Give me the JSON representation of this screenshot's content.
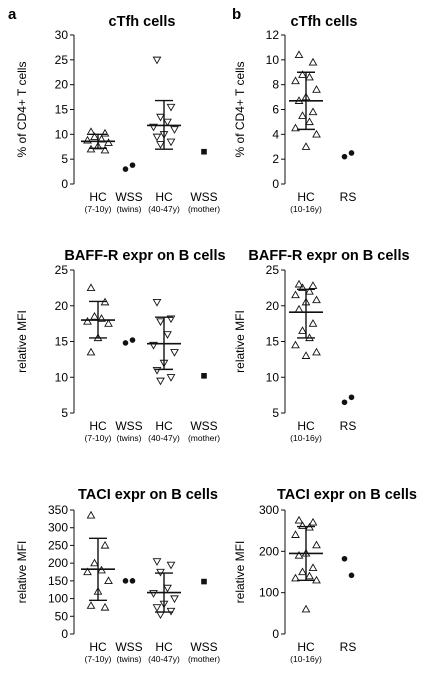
{
  "panel_letters": [
    "a",
    "b"
  ],
  "chart_data": [
    {
      "id": "a-cTfh",
      "type": "scatter",
      "panel": "a",
      "title": "cTfh cells",
      "ylabel": "% of CD4+ T cells",
      "ylim": [
        0,
        30
      ],
      "yticks": [
        0,
        5,
        10,
        15,
        20,
        25,
        30
      ],
      "categories": [
        {
          "label": "HC",
          "sub": "(7-10y)"
        },
        {
          "label": "WSS",
          "sub": "(twins)"
        },
        {
          "label": "HC",
          "sub": "(40-47y)"
        },
        {
          "label": "WSS",
          "sub": "(mother)"
        }
      ],
      "series": [
        {
          "category": 0,
          "marker": "triangle-up",
          "values": [
            10.5,
            10.2,
            9.5,
            9.0,
            8.8,
            8.3,
            7.6,
            7.0,
            6.8
          ],
          "mean": 8.6,
          "sd": [
            7.2,
            10.0
          ]
        },
        {
          "category": 1,
          "marker": "circle",
          "values": [
            3.0,
            3.8
          ]
        },
        {
          "category": 2,
          "marker": "triangle-down",
          "values": [
            25.0,
            15.5,
            13.5,
            12.5,
            11.5,
            11.0,
            10.0,
            9.5,
            8.5,
            8.0
          ],
          "mean": 11.8,
          "sd": [
            7.0,
            16.8
          ]
        },
        {
          "category": 3,
          "marker": "square",
          "values": [
            6.5
          ]
        }
      ]
    },
    {
      "id": "a-BAFFR",
      "type": "scatter",
      "panel": "a",
      "title": "BAFF-R expr on B cells",
      "ylabel": "relative MFI",
      "ylim": [
        5,
        25
      ],
      "yticks": [
        5,
        10,
        15,
        20,
        25
      ],
      "categories": [
        {
          "label": "HC",
          "sub": "(7-10y)"
        },
        {
          "label": "WSS",
          "sub": "(twins)"
        },
        {
          "label": "HC",
          "sub": "(40-47y)"
        },
        {
          "label": "WSS",
          "sub": "(mother)"
        }
      ],
      "series": [
        {
          "category": 0,
          "marker": "triangle-up",
          "values": [
            22.5,
            20.5,
            18.5,
            18.2,
            17.8,
            17.5,
            15.5,
            13.5
          ],
          "mean": 18.0,
          "sd": [
            15.5,
            20.6
          ]
        },
        {
          "category": 1,
          "marker": "circle",
          "values": [
            14.8,
            15.2
          ]
        },
        {
          "category": 2,
          "marker": "triangle-down",
          "values": [
            20.5,
            18.2,
            17.8,
            16.0,
            14.5,
            13.5,
            12.0,
            11.0,
            10.0,
            9.5
          ],
          "mean": 14.7,
          "sd": [
            11.1,
            18.4
          ]
        },
        {
          "category": 3,
          "marker": "square",
          "values": [
            10.2
          ]
        }
      ]
    },
    {
      "id": "a-TACI",
      "type": "scatter",
      "panel": "a",
      "title": "TACI expr on B cells",
      "ylabel": "relative MFI",
      "ylim": [
        0,
        350
      ],
      "yticks": [
        0,
        50,
        100,
        150,
        200,
        250,
        300,
        350
      ],
      "categories": [
        {
          "label": "HC",
          "sub": "(7-10y)"
        },
        {
          "label": "WSS",
          "sub": "(twins)"
        },
        {
          "label": "HC",
          "sub": "(40-47y)"
        },
        {
          "label": "WSS",
          "sub": "(mother)"
        }
      ],
      "series": [
        {
          "category": 0,
          "marker": "triangle-up",
          "values": [
            335,
            250,
            200,
            180,
            175,
            150,
            120,
            80,
            75
          ],
          "mean": 183,
          "sd": [
            95,
            270
          ]
        },
        {
          "category": 1,
          "marker": "circle",
          "values": [
            150,
            150
          ]
        },
        {
          "category": 2,
          "marker": "triangle-down",
          "values": [
            205,
            195,
            175,
            130,
            115,
            100,
            85,
            75,
            65,
            55
          ],
          "mean": 117,
          "sd": [
            62,
            172
          ]
        },
        {
          "category": 3,
          "marker": "square",
          "values": [
            148
          ]
        }
      ]
    },
    {
      "id": "b-cTfh",
      "type": "scatter",
      "panel": "b",
      "title": "cTfh cells",
      "ylabel": "% of CD4+ T cells",
      "ylim": [
        0,
        12
      ],
      "yticks": [
        0,
        2,
        4,
        6,
        8,
        10,
        12
      ],
      "categories": [
        {
          "label": "HC",
          "sub": "(10-16y)"
        },
        {
          "label": "RS",
          "sub": ""
        }
      ],
      "series": [
        {
          "category": 0,
          "marker": "triangle-up",
          "values": [
            10.4,
            9.8,
            8.8,
            8.6,
            8.3,
            7.6,
            7.0,
            6.7,
            5.8,
            5.5,
            5.0,
            4.5,
            4.0,
            3.0
          ],
          "mean": 6.7,
          "sd": [
            4.4,
            9.0
          ]
        },
        {
          "category": 1,
          "marker": "circle",
          "values": [
            2.2,
            2.5
          ]
        }
      ]
    },
    {
      "id": "b-BAFFR",
      "type": "scatter",
      "panel": "b",
      "title": "BAFF-R expr on B cells",
      "ylabel": "relative MFI",
      "ylim": [
        5,
        25
      ],
      "yticks": [
        5,
        10,
        15,
        20,
        25
      ],
      "categories": [
        {
          "label": "HC",
          "sub": "(10-16y)"
        },
        {
          "label": "RS",
          "sub": ""
        }
      ],
      "series": [
        {
          "category": 0,
          "marker": "triangle-up",
          "values": [
            23.0,
            22.8,
            22.5,
            22.0,
            21.5,
            20.8,
            20.5,
            19.5,
            17.5,
            16.5,
            15.5,
            14.5,
            13.5,
            13.0
          ],
          "mean": 19.1,
          "sd": [
            15.5,
            22.3
          ]
        },
        {
          "category": 1,
          "marker": "circle",
          "values": [
            6.5,
            7.2
          ]
        }
      ]
    },
    {
      "id": "b-TACI",
      "type": "scatter",
      "panel": "b",
      "title": "TACI expr on B cells",
      "ylabel": "relative MFI",
      "ylim": [
        0,
        300
      ],
      "yticks": [
        0,
        100,
        200,
        300
      ],
      "categories": [
        {
          "label": "HC",
          "sub": "(10-16y)"
        },
        {
          "label": "RS",
          "sub": ""
        }
      ],
      "series": [
        {
          "category": 0,
          "marker": "triangle-up",
          "values": [
            275,
            270,
            262,
            258,
            240,
            215,
            195,
            190,
            160,
            150,
            140,
            135,
            130,
            60
          ],
          "mean": 195,
          "sd": [
            130,
            260
          ]
        },
        {
          "category": 1,
          "marker": "circle",
          "values": [
            182,
            142
          ]
        }
      ]
    }
  ]
}
